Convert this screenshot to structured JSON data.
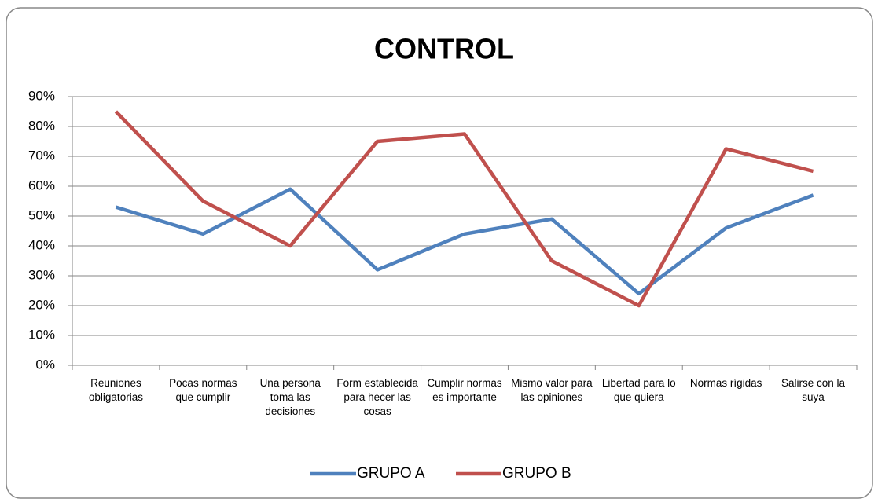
{
  "chart_data": {
    "type": "line",
    "title": "CONTROL",
    "categories": [
      "Reuniones obligatorias",
      "Pocas normas que cumplir",
      "Una persona toma las decisiones",
      "Form establecida para hecer las cosas",
      "Cumplir normas es importante",
      "Mismo valor para las opiniones",
      "Libertad para lo que quiera",
      "Normas rígidas",
      "Salirse con la suya"
    ],
    "series": [
      {
        "name": "GRUPO A",
        "color": "#4f81bd",
        "values": [
          53,
          44,
          59,
          32,
          44,
          49,
          24,
          46,
          57
        ]
      },
      {
        "name": "GRUPO B",
        "color": "#c0504d",
        "values": [
          85,
          55,
          40,
          75,
          77.5,
          35,
          20,
          72.5,
          65
        ]
      }
    ],
    "ylim": [
      0,
      90
    ],
    "yticks": [
      {
        "value": 0,
        "label": "0%"
      },
      {
        "value": 10,
        "label": "10%"
      },
      {
        "value": 20,
        "label": "20%"
      },
      {
        "value": 30,
        "label": "30%"
      },
      {
        "value": 40,
        "label": "40%"
      },
      {
        "value": 50,
        "label": "50%"
      },
      {
        "value": 60,
        "label": "60%"
      },
      {
        "value": 70,
        "label": "70%"
      },
      {
        "value": 80,
        "label": "80%"
      },
      {
        "value": 90,
        "label": "90%"
      }
    ],
    "grid": true,
    "legend": "bottom"
  }
}
